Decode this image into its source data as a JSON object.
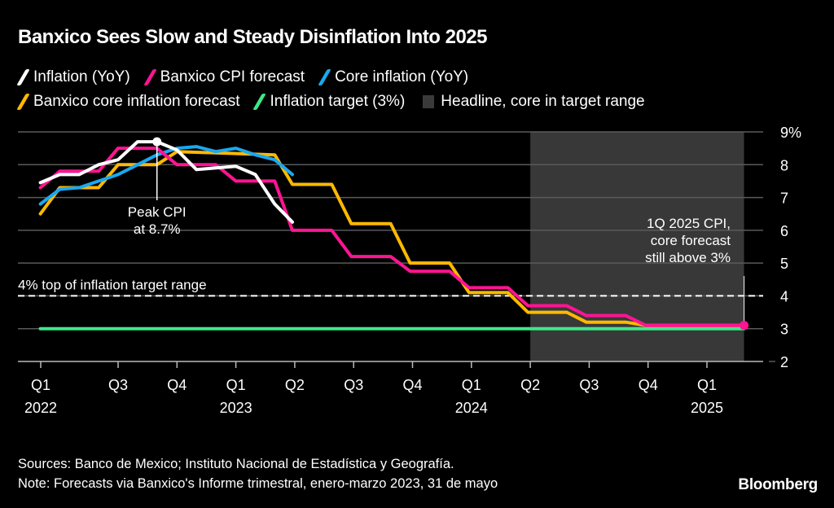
{
  "title": "Banxico Sees Slow and Steady Disinflation Into 2025",
  "legend": [
    {
      "label": "Inflation (YoY)",
      "color": "#ffffff",
      "type": "line"
    },
    {
      "label": "Banxico CPI forecast",
      "color": "#ff1493",
      "type": "line"
    },
    {
      "label": "Core inflation (YoY)",
      "color": "#1ba8f0",
      "type": "line"
    },
    {
      "label": "Banxico core inflation forecast",
      "color": "#ffb900",
      "type": "line"
    },
    {
      "label": "Inflation target (3%)",
      "color": "#3ee88a",
      "type": "line"
    },
    {
      "label": "Headline, core in target range",
      "color": "#3a3a3a",
      "type": "box"
    }
  ],
  "footer": {
    "sources": "Sources: Banco de Mexico; Instituto Nacional de Estadística y Geografía.",
    "note": "Note: Forecasts via Banxico's Informe trimestral, enero-marzo 2023, 31 de mayo"
  },
  "logo": "Bloomberg",
  "chart_data": {
    "type": "line",
    "title": "Banxico Sees Slow and Steady Disinflation Into 2025",
    "xlabel": "",
    "ylabel": "",
    "x_unit": "quarters since Q1 2022",
    "ylim": [
      2,
      9
    ],
    "xlim": [
      0.68,
      12.9
    ],
    "grid": true,
    "legend_position": "top-left",
    "y_ticks": [
      "9%",
      "8",
      "7",
      "6",
      "5",
      "4",
      "3",
      "2"
    ],
    "y_tick_values": [
      9,
      8,
      7,
      6,
      5,
      4,
      3,
      2
    ],
    "x_ticks": [
      {
        "label": "Q1",
        "sub": "2022",
        "t": 0.68
      },
      {
        "label": "Q3",
        "sub": "",
        "t": 2
      },
      {
        "label": "Q4",
        "sub": "",
        "t": 3
      },
      {
        "label": "Q1",
        "sub": "2023",
        "t": 4
      },
      {
        "label": "Q2",
        "sub": "",
        "t": 5
      },
      {
        "label": "Q3",
        "sub": "",
        "t": 6
      },
      {
        "label": "Q4",
        "sub": "",
        "t": 7
      },
      {
        "label": "Q1",
        "sub": "2024",
        "t": 8
      },
      {
        "label": "Q2",
        "sub": "",
        "t": 9
      },
      {
        "label": "Q3",
        "sub": "",
        "t": 10
      },
      {
        "label": "Q4",
        "sub": "",
        "t": 11
      },
      {
        "label": "Q1",
        "sub": "2025",
        "t": 12
      }
    ],
    "shaded_range": {
      "label": "Headline, core in target range",
      "from": 9,
      "to": 12.63
    },
    "reference_lines": [
      {
        "label": "4% top of inflation target range",
        "value": 4,
        "style": "dashed"
      }
    ],
    "series": [
      {
        "name": "Inflation (YoY)",
        "color": "#ffffff",
        "x": [
          0.68,
          1.01,
          1.34,
          1.67,
          2.0,
          2.33,
          2.66,
          3.0,
          3.33,
          3.66,
          4.0,
          4.33,
          4.66,
          4.96
        ],
        "y": [
          7.45,
          7.7,
          7.7,
          8.0,
          8.15,
          8.7,
          8.7,
          8.45,
          7.85,
          7.9,
          7.95,
          7.7,
          6.8,
          6.25
        ]
      },
      {
        "name": "Banxico CPI forecast",
        "color": "#ff1493",
        "x": [
          0.68,
          1.01,
          1.67,
          2.0,
          2.66,
          3.0,
          3.66,
          4.0,
          4.66,
          4.96,
          5.63,
          5.96,
          6.63,
          6.96,
          7.63,
          7.96,
          8.62,
          8.96,
          9.62,
          9.95,
          10.62,
          10.96,
          12.63
        ],
        "y": [
          7.3,
          7.8,
          7.8,
          8.5,
          8.5,
          8.0,
          8.0,
          7.5,
          7.5,
          6.0,
          6.0,
          5.2,
          5.2,
          4.75,
          4.75,
          4.25,
          4.25,
          3.7,
          3.7,
          3.4,
          3.4,
          3.1,
          3.1
        ]
      },
      {
        "name": "Core inflation (YoY)",
        "color": "#1ba8f0",
        "x": [
          0.68,
          1.01,
          1.34,
          1.67,
          2.0,
          2.33,
          2.66,
          3.0,
          3.33,
          3.66,
          4.0,
          4.33,
          4.66,
          4.96
        ],
        "y": [
          6.8,
          7.25,
          7.3,
          7.5,
          7.7,
          8.0,
          8.3,
          8.5,
          8.55,
          8.4,
          8.5,
          8.3,
          8.15,
          7.7
        ]
      },
      {
        "name": "Banxico core inflation forecast",
        "color": "#ffb900",
        "x": [
          0.68,
          1.01,
          1.67,
          2.0,
          2.66,
          3.0,
          4.66,
          4.96,
          5.63,
          5.96,
          6.63,
          6.96,
          7.63,
          7.96,
          8.62,
          8.96,
          9.62,
          9.95,
          10.62,
          10.96,
          12.63
        ],
        "y": [
          6.5,
          7.3,
          7.3,
          8.0,
          8.0,
          8.4,
          8.3,
          7.4,
          7.4,
          6.2,
          6.2,
          5.0,
          5.0,
          4.1,
          4.1,
          3.5,
          3.5,
          3.2,
          3.2,
          3.1,
          3.1
        ]
      },
      {
        "name": "Inflation target (3%)",
        "color": "#3ee88a",
        "x": [
          0.68,
          12.63
        ],
        "y": [
          3.0,
          3.0
        ]
      }
    ],
    "annotations": [
      {
        "text": [
          "Peak CPI",
          "at 8.7%"
        ],
        "x": 2.66,
        "y": 8.7,
        "series": "Inflation (YoY)"
      },
      {
        "text": [
          "1Q 2025 CPI,",
          "core forecast",
          "still above 3%"
        ],
        "x": 12.63,
        "y": 3.1,
        "series": "Banxico CPI forecast"
      },
      {
        "text": [
          "4% top of inflation target range"
        ],
        "x": 0,
        "y": 4
      }
    ]
  }
}
